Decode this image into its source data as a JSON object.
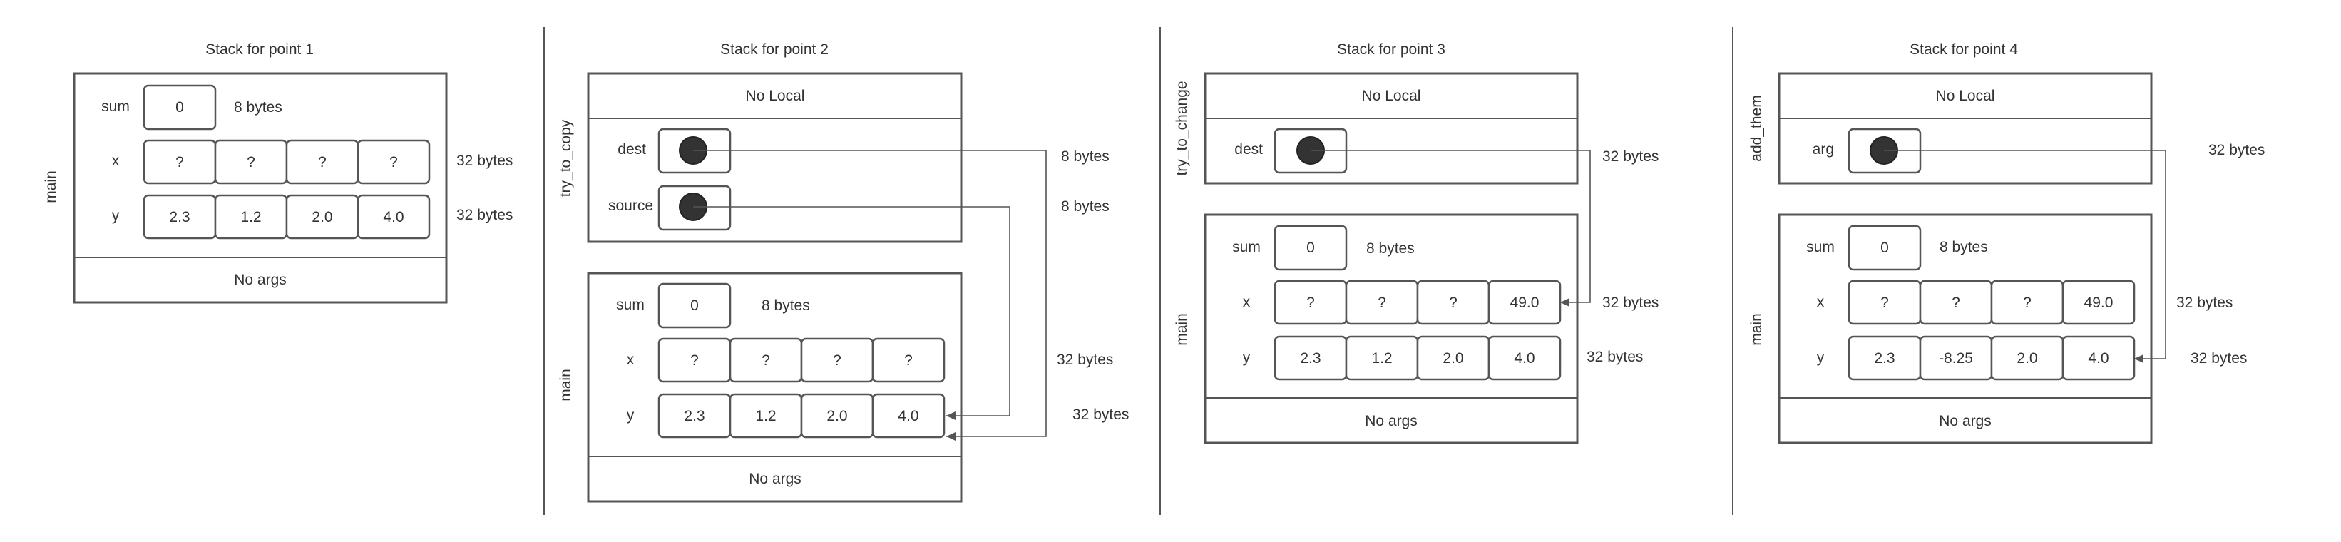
{
  "panels": [
    {
      "title": "Stack for point 1",
      "frames": [
        {
          "function_label": "main",
          "rows": [
            {
              "name": "sum",
              "cells": [
                "0"
              ],
              "size": "8 bytes"
            },
            {
              "name": "x",
              "cells": [
                "?",
                "?",
                "?",
                "?"
              ],
              "size": "32 bytes"
            },
            {
              "name": "y",
              "cells": [
                "2.3",
                "1.2",
                "2.0",
                "4.0"
              ],
              "size": "32 bytes"
            }
          ],
          "args": "No args"
        }
      ]
    },
    {
      "title": "Stack for point 2",
      "frames": [
        {
          "function_label": "try_to_copy",
          "locals": "No Local",
          "rows": [
            {
              "name": "dest",
              "pointer": true,
              "size": "8 bytes"
            },
            {
              "name": "source",
              "pointer": true,
              "size": "8 bytes"
            }
          ]
        },
        {
          "function_label": "main",
          "rows": [
            {
              "name": "sum",
              "cells": [
                "0"
              ],
              "size": "8 bytes"
            },
            {
              "name": "x",
              "cells": [
                "?",
                "?",
                "?",
                "?"
              ],
              "size": "32 bytes"
            },
            {
              "name": "y",
              "cells": [
                "2.3",
                "1.2",
                "2.0",
                "4.0"
              ],
              "size": "32 bytes"
            }
          ],
          "args": "No args"
        }
      ]
    },
    {
      "title": "Stack for point 3",
      "frames": [
        {
          "function_label": "try_to_change",
          "locals": "No Local",
          "rows": [
            {
              "name": "dest",
              "pointer": true,
              "size": "32 bytes"
            }
          ]
        },
        {
          "function_label": "main",
          "rows": [
            {
              "name": "sum",
              "cells": [
                "0"
              ],
              "size": "8 bytes"
            },
            {
              "name": "x",
              "cells": [
                "?",
                "?",
                "?",
                "49.0"
              ],
              "size": "32 bytes"
            },
            {
              "name": "y",
              "cells": [
                "2.3",
                "1.2",
                "2.0",
                "4.0"
              ],
              "size": "32 bytes"
            }
          ],
          "args": "No args"
        }
      ]
    },
    {
      "title": "Stack for point 4",
      "frames": [
        {
          "function_label": "add_them",
          "locals": "No Local",
          "rows": [
            {
              "name": "arg",
              "pointer": true,
              "size": "32 bytes"
            }
          ]
        },
        {
          "function_label": "main",
          "rows": [
            {
              "name": "sum",
              "cells": [
                "0"
              ],
              "size": "8 bytes"
            },
            {
              "name": "x",
              "cells": [
                "?",
                "?",
                "?",
                "49.0"
              ],
              "size": "32 bytes"
            },
            {
              "name": "y",
              "cells": [
                "2.3",
                "-8.25",
                "2.0",
                "4.0"
              ],
              "size": "32 bytes"
            }
          ],
          "args": "No args"
        }
      ]
    }
  ],
  "colors": {
    "stroke": "#555555",
    "text": "#333333",
    "pointer_dot": "#333333",
    "background": "#ffffff"
  }
}
